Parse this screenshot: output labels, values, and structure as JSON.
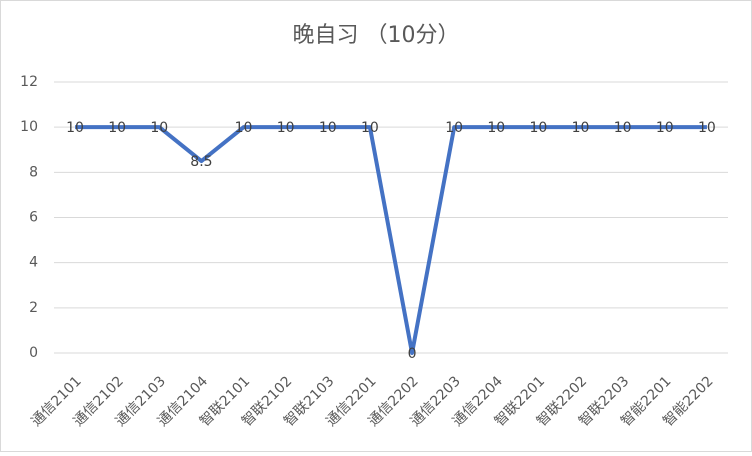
{
  "chart_data": {
    "type": "line",
    "title": "晚自习 （10分）",
    "categories": [
      "通信2101",
      "通信2102",
      "通信2103",
      "通信2104",
      "智联2101",
      "智联2102",
      "智联2103",
      "通信2201",
      "通信2202",
      "通信2203",
      "通信2204",
      "智联2201",
      "智联2202",
      "智联2203",
      "智能2201",
      "智能2202"
    ],
    "values": [
      10,
      10,
      10,
      8.5,
      10,
      10,
      10,
      10,
      0,
      10,
      10,
      10,
      10,
      10,
      10,
      10
    ],
    "color": "#4472c4",
    "ylim": [
      0,
      12
    ],
    "yticks": [
      0,
      2,
      4,
      6,
      8,
      10,
      12
    ],
    "grid": true,
    "data_labels": true
  }
}
